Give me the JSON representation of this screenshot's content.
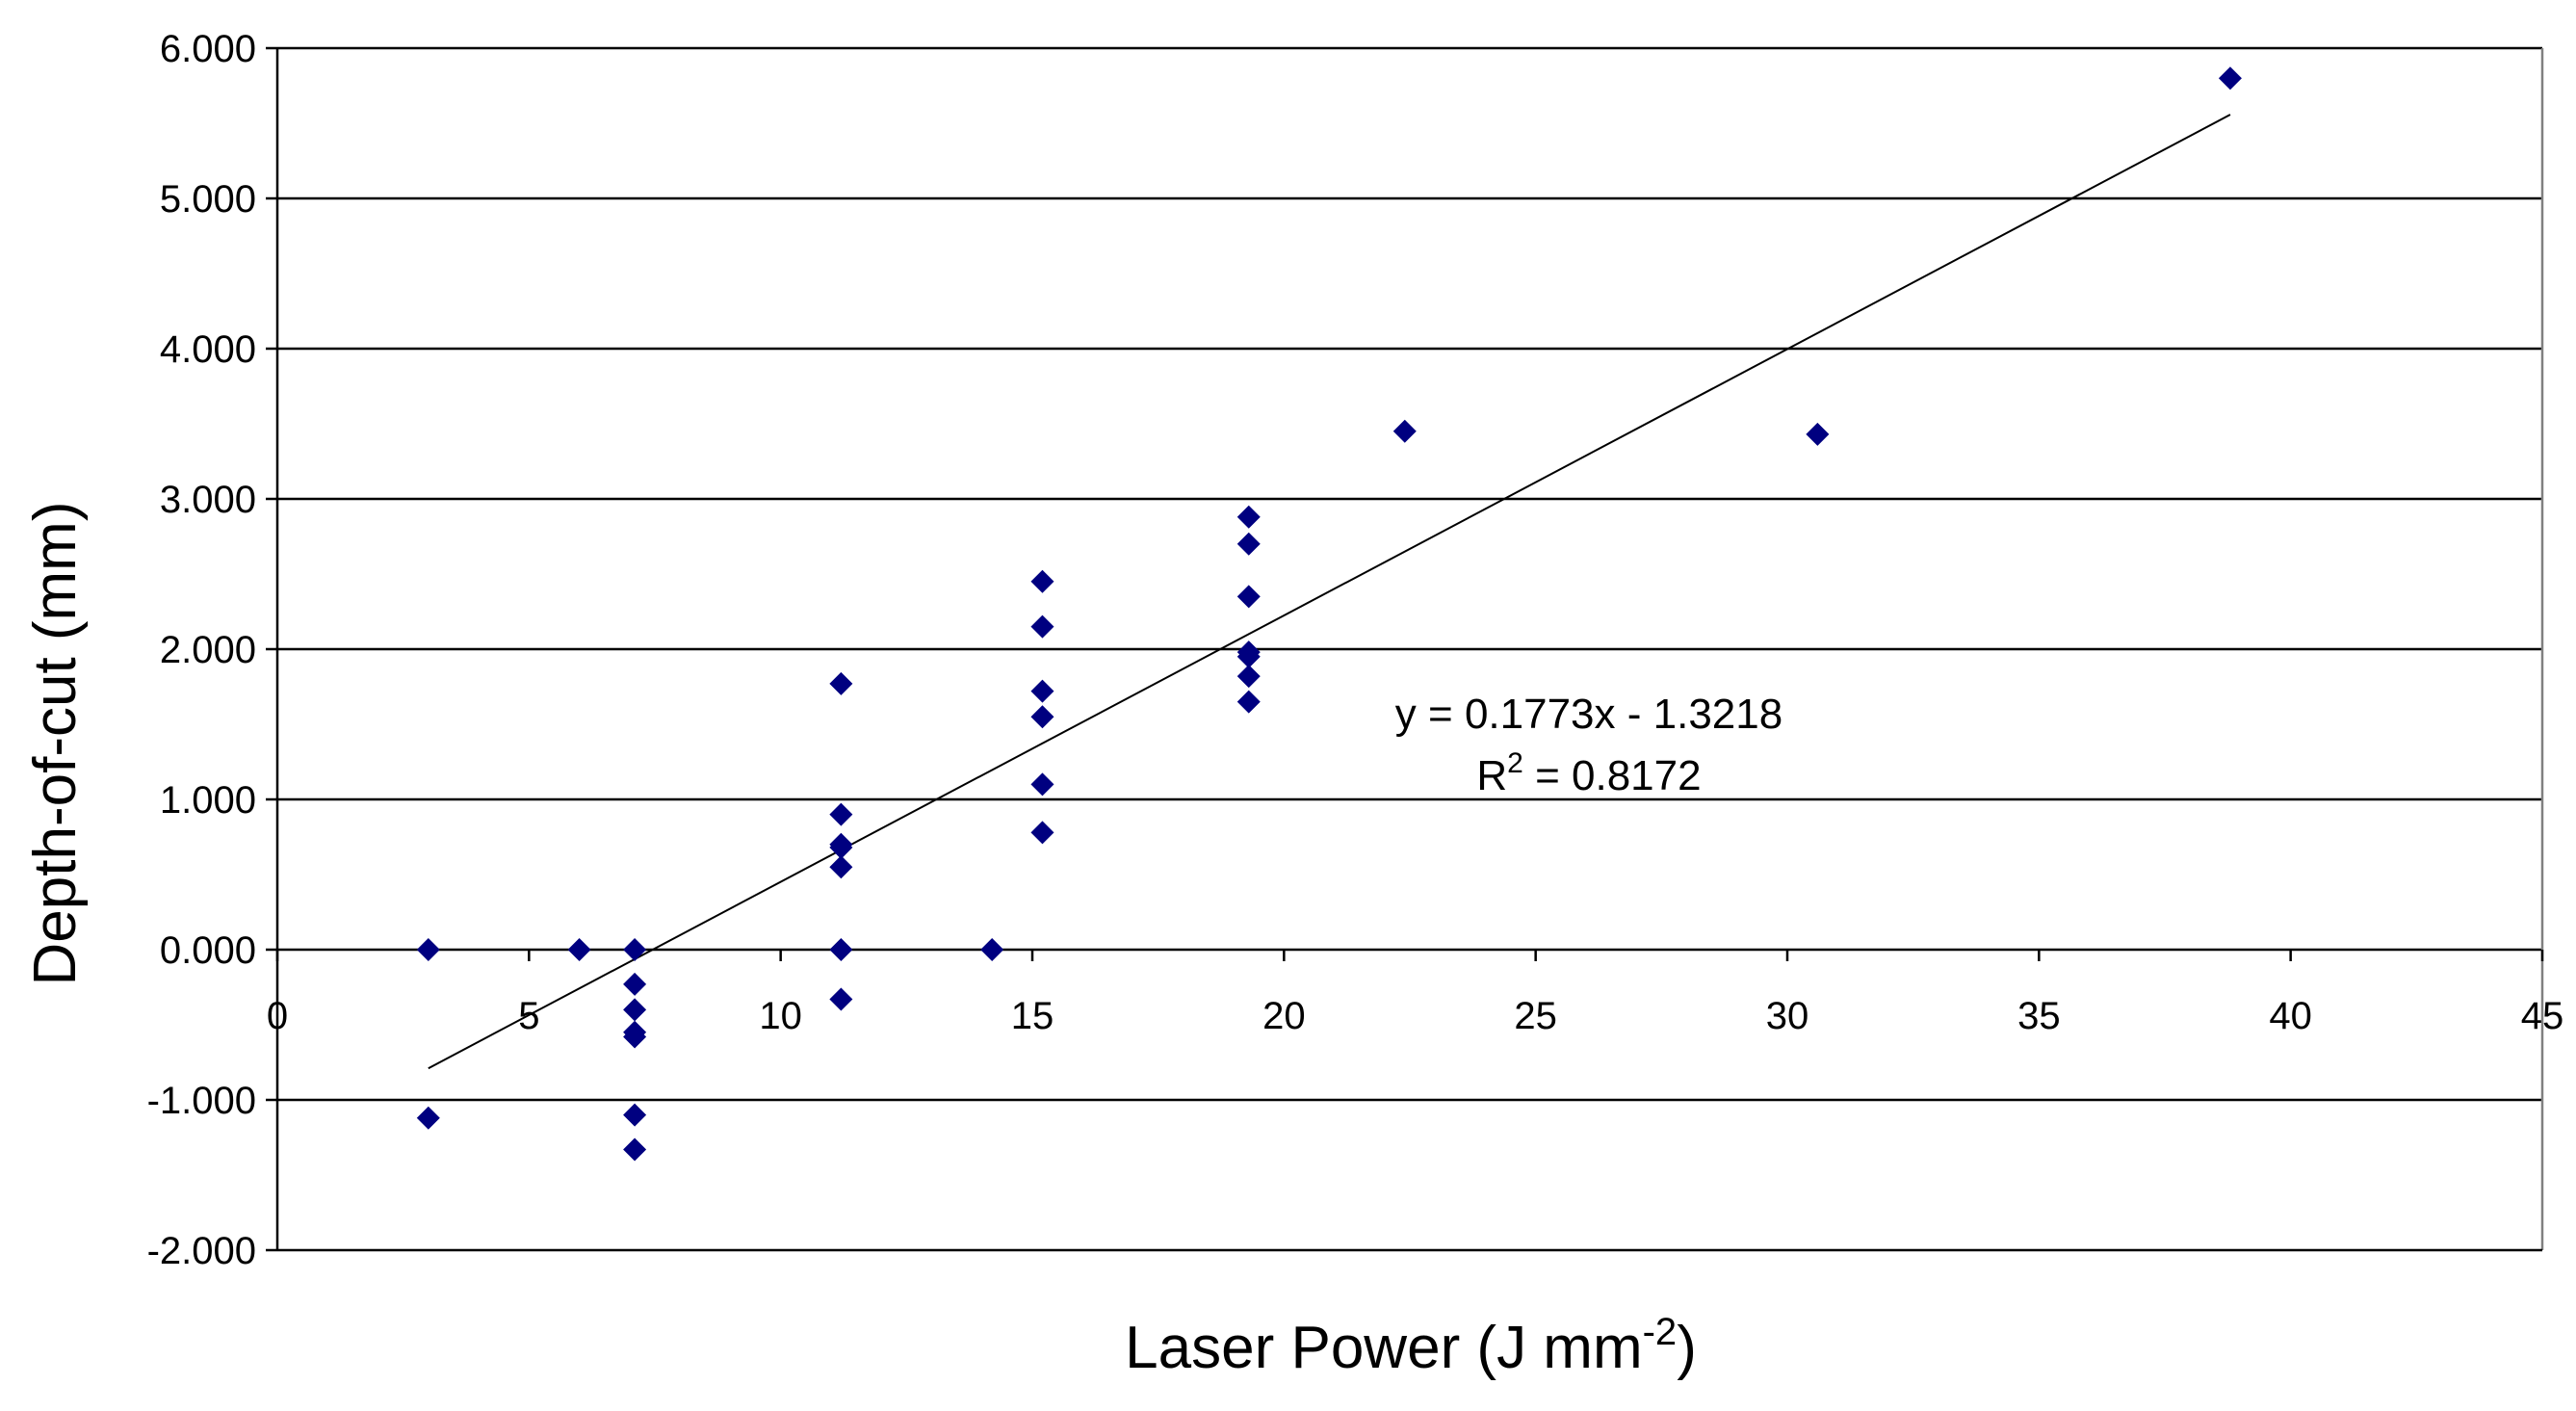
{
  "chart_data": {
    "type": "scatter",
    "title": "",
    "xlabel": "Laser Power (J mm",
    "xlabel_superscript": "-2",
    "xlabel_suffix": ")",
    "ylabel": "Depth-of-cut (mm)",
    "xlim": [
      0,
      45
    ],
    "ylim": [
      -2,
      6
    ],
    "xticks": [
      0,
      5,
      10,
      15,
      20,
      25,
      30,
      35,
      40,
      45
    ],
    "yticks": [
      -2,
      -1,
      0,
      1,
      2,
      3,
      4,
      5,
      6
    ],
    "ytick_labels": [
      "-2.000",
      "-1.000",
      "0.000",
      "1.000",
      "2.000",
      "3.000",
      "4.000",
      "5.000",
      "6.000"
    ],
    "grid": "horizontal",
    "marker_color": "#000080",
    "x": [
      3,
      3,
      6,
      7.1,
      7.1,
      7.1,
      7.1,
      7.1,
      7.1,
      7.1,
      11.2,
      11.2,
      11.2,
      11.2,
      11.2,
      11.2,
      11.2,
      14.2,
      15.2,
      15.2,
      15.2,
      15.2,
      15.2,
      15.2,
      19.3,
      19.3,
      19.3,
      19.3,
      19.3,
      19.3,
      19.3,
      22.4,
      30.6,
      38.8
    ],
    "y": [
      0,
      -1.12,
      0,
      0,
      -0.23,
      -0.4,
      -0.58,
      -1.1,
      -1.33,
      -0.55,
      1.77,
      0.9,
      0.7,
      0.55,
      0,
      -0.33,
      0.68,
      0,
      2.45,
      2.15,
      1.72,
      1.55,
      1.1,
      0.78,
      2.88,
      2.7,
      2.35,
      1.98,
      1.82,
      1.65,
      1.95,
      3.45,
      3.43,
      5.8
    ],
    "trendline": {
      "slope": 0.1773,
      "intercept": -1.3218,
      "x_range": [
        3,
        38.8
      ],
      "equation_main": "y = 0.1773x - 1.3218",
      "r2_prefix": "R",
      "r2_superscript": "2",
      "r2_value": " = 0.8172"
    }
  }
}
